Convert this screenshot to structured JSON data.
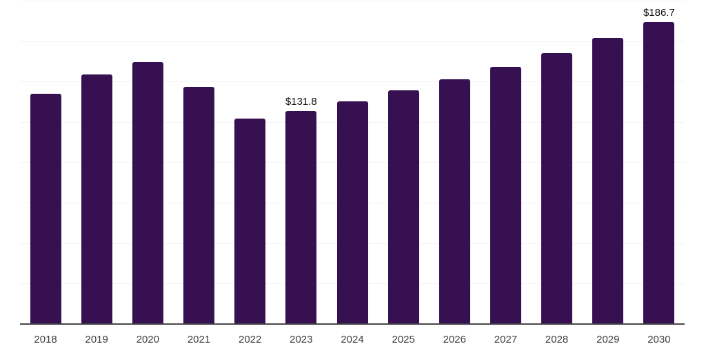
{
  "chart_data": {
    "type": "bar",
    "categories": [
      "2018",
      "2019",
      "2020",
      "2021",
      "2022",
      "2023",
      "2024",
      "2025",
      "2026",
      "2027",
      "2028",
      "2029",
      "2030"
    ],
    "values": [
      142.5,
      154.3,
      161.9,
      146.8,
      126.9,
      131.8,
      137.6,
      144.4,
      151.6,
      159.1,
      167.5,
      177.1,
      186.7
    ],
    "data_labels": {
      "2023": "$131.8",
      "2030": "$186.7"
    },
    "xlabel": "",
    "ylabel": "",
    "ylim": [
      0,
      200
    ],
    "gridline_step": 25,
    "grid": "horizontal-only",
    "legend": "none",
    "y_axis_ticks_visible": false,
    "bar_color": "#361050",
    "axis_line_color": "#474747",
    "gridline_color": "#f2f2f2",
    "tick_label_color": "#3d3d3d",
    "data_label_color": "#111111"
  }
}
